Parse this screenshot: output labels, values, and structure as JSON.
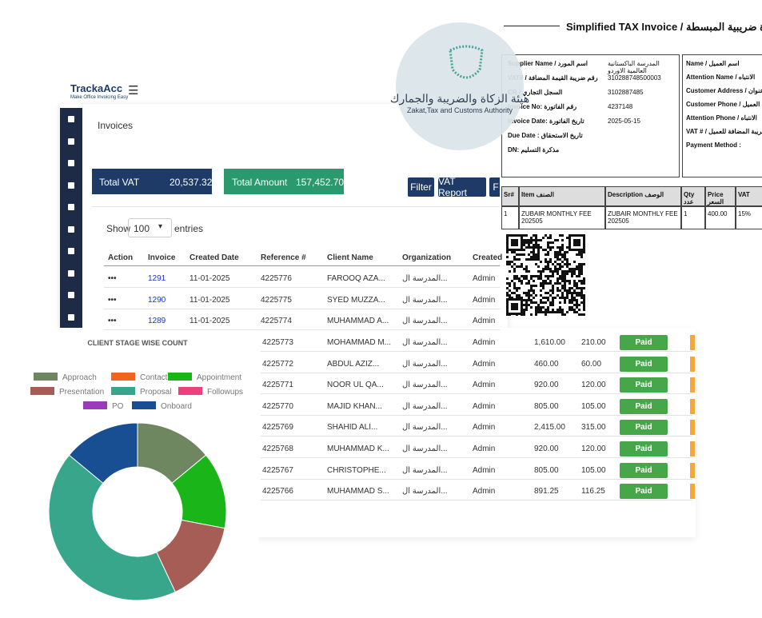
{
  "app": {
    "logo": "TrackaAcc",
    "tagline": "Make Office Invoicing Easy"
  },
  "page_title": "Invoices",
  "totals": [
    {
      "label": "Total VAT",
      "value": "20,537.32"
    },
    {
      "label": "Total Amount",
      "value": "157,452.70"
    }
  ],
  "buttons": [
    "Filter",
    "VAT Report",
    "F"
  ],
  "length_menu": {
    "show": "Show",
    "value": "100",
    "entries": "entries"
  },
  "table": {
    "columns": [
      "Action",
      "Invoice",
      "Created Date",
      "Reference #",
      "Client Name",
      "Organization",
      "Created"
    ],
    "rows": [
      {
        "action": "•••",
        "invoice": "1291",
        "date": "11-01-2025",
        "reference": "4225776",
        "client": "FAROOQ AZA...",
        "organization": "المدرسة ال...",
        "created": "Admin"
      },
      {
        "action": "•••",
        "invoice": "1290",
        "date": "11-01-2025",
        "reference": "4225775",
        "client": "SYED MUZZA...",
        "organization": "المدرسة ال...",
        "created": "Admin"
      },
      {
        "action": "•••",
        "invoice": "1289",
        "date": "11-01-2025",
        "reference": "4225774",
        "client": "MUHAMMAD A...",
        "organization": "المدرسة ال...",
        "created": "Admin"
      },
      {
        "reference": "4225773",
        "client": "MOHAMMAD M...",
        "organization": "المدرسة ال...",
        "created": "Admin",
        "amount": "1,610.00",
        "vat": "210.00",
        "status": "Paid"
      },
      {
        "reference": "4225772",
        "client": "ABDUL AZIZ...",
        "organization": "المدرسة ال...",
        "created": "Admin",
        "amount": "460.00",
        "vat": "60.00",
        "status": "Paid"
      },
      {
        "reference": "4225771",
        "client": "NOOR UL QA...",
        "organization": "المدرسة ال...",
        "created": "Admin",
        "amount": "920.00",
        "vat": "120.00",
        "status": "Paid"
      },
      {
        "reference": "4225770",
        "client": "MAJID KHAN...",
        "organization": "المدرسة ال...",
        "created": "Admin",
        "amount": "805.00",
        "vat": "105.00",
        "status": "Paid"
      },
      {
        "reference": "4225769",
        "client": "SHAHID ALI...",
        "organization": "المدرسة ال...",
        "created": "Admin",
        "amount": "2,415.00",
        "vat": "315.00",
        "status": "Paid"
      },
      {
        "reference": "4225768",
        "client": "MUHAMMAD K...",
        "organization": "المدرسة ال...",
        "created": "Admin",
        "amount": "920.00",
        "vat": "120.00",
        "status": "Paid"
      },
      {
        "reference": "4225767",
        "client": "CHRISTOPHE...",
        "organization": "المدرسة ال...",
        "created": "Admin",
        "amount": "805.00",
        "vat": "105.00",
        "status": "Paid"
      },
      {
        "reference": "4225766",
        "client": "MUHAMMAD S...",
        "organization": "المدرسة ال...",
        "created": "Admin",
        "amount": "891.25",
        "vat": "116.25",
        "status": "Paid"
      }
    ]
  },
  "invoice_doc": {
    "title": "Simplified TAX Invoice / فاتورة ضريبية المبسطة",
    "supplier": [
      {
        "label": "Supplier Name / اسم المورد",
        "value": "المدرسة الباكستانية العالمية الاوردو"
      },
      {
        "label": "VAT# / رقم ضريبة القيمة المضافة",
        "value": "310288748500003"
      },
      {
        "label": "CR / السجل التجاري",
        "value": "3102887485"
      },
      {
        "label": "Invoice No: رقم الفاتورة",
        "value": "4237148"
      },
      {
        "label": "Invoice Date: تاريخ الفاتورة",
        "value": "2025-05-15"
      },
      {
        "label": "Due Date : تاريخ الاستحقاق"
      },
      {
        "label": "DN: مذكرة التسليم"
      }
    ],
    "customer": [
      "Name / اسم العميل",
      "Attention Name / الانتباه",
      "Customer Address / عنوان",
      "Customer Phone / هاتف العميل",
      "Attention Phone / الانتباه",
      "VAT # / ضريبة المضافة للعميل",
      "Payment Method :"
    ],
    "item_columns": [
      "Sr#",
      "Item الصنف",
      "Description الوصف",
      "Qty عدد",
      "Price السعر",
      "VAT"
    ],
    "items": [
      [
        "1",
        "ZUBAIR MONTHLY FEE 202505",
        "ZUBAIR MONTHLY FEE 202505",
        "1",
        "400.00",
        "15%"
      ]
    ]
  },
  "authority": {
    "arabic": "هيئة الزكاة والضريبة والجمارك",
    "english": "Zakat,Tax and Customs Authority"
  },
  "chart_data": {
    "type": "donut",
    "title": "CLIENT STAGE WISE COUNT",
    "series": [
      {
        "name": "Approach",
        "color": "#6e8761",
        "value": 14
      },
      {
        "name": "Contact",
        "color": "#f0661f",
        "value": 0
      },
      {
        "name": "Appointment",
        "color": "#19b519",
        "value": 14
      },
      {
        "name": "Presentation",
        "color": "#a65d55",
        "value": 15
      },
      {
        "name": "Proposal",
        "color": "#37a68b",
        "value": 43
      },
      {
        "name": "Followups",
        "color": "#ef3f7c",
        "value": 0
      },
      {
        "name": "PO",
        "color": "#9a3bba",
        "value": 0
      },
      {
        "name": "Onboard",
        "color": "#184f93",
        "value": 14
      }
    ]
  }
}
